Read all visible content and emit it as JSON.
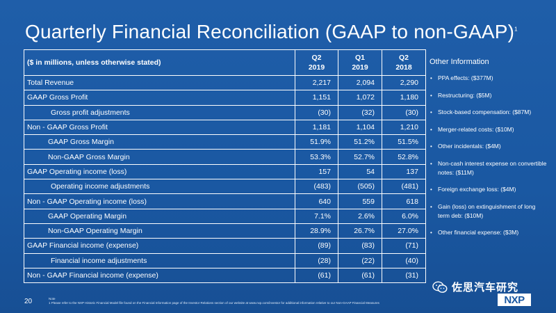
{
  "slide": {
    "title": "Quarterly Financial Reconciliation (GAAP to non-GAAP)",
    "title_footnote_marker": "1",
    "page_number": "20",
    "note_label": "Note",
    "note_text": "1    Please refer to the NXP Historic Financial Model file found on the Financial Information page of the Investor Relations section of our website at www.nxp.com/investor for additional information relative to our Non-GAAP Financial Measures"
  },
  "table": {
    "header_label": "($ in millions, unless otherwise stated)",
    "columns": [
      {
        "q": "Q2",
        "year": "2019"
      },
      {
        "q": "Q1",
        "year": "2019"
      },
      {
        "q": "Q2",
        "year": "2018"
      }
    ],
    "rows": [
      {
        "label": "Total Revenue",
        "values": [
          "2,217",
          "2,094",
          "2,290"
        ]
      },
      {
        "label": "GAAP Gross Profit",
        "values": [
          "1,151",
          "1,072",
          "1,180"
        ]
      },
      {
        "label": "Gross profit adjustments",
        "values": [
          "(30)",
          "(32)",
          "(30)"
        ]
      },
      {
        "label": "Non - GAAP Gross Profit",
        "values": [
          "1,181",
          "1,104",
          "1,210"
        ]
      },
      {
        "label": "GAAP Gross Margin",
        "values": [
          "51.9%",
          "51.2%",
          "51.5%"
        ]
      },
      {
        "label": "Non-GAAP Gross Margin",
        "values": [
          "53.3%",
          "52.7%",
          "52.8%"
        ]
      },
      {
        "label": "GAAP Operating income (loss)",
        "values": [
          "157",
          "54",
          "137"
        ]
      },
      {
        "label": "Operating income adjustments",
        "values": [
          "(483)",
          "(505)",
          "(481)"
        ]
      },
      {
        "label": "Non - GAAP Operating income (loss)",
        "values": [
          "640",
          "559",
          "618"
        ]
      },
      {
        "label": "GAAP Operating Margin",
        "values": [
          "7.1%",
          "2.6%",
          "6.0%"
        ]
      },
      {
        "label": "Non-GAAP Operating Margin",
        "values": [
          "28.9%",
          "26.7%",
          "27.0%"
        ]
      },
      {
        "label": "GAAP Financial income (expense)",
        "values": [
          "(89)",
          "(83)",
          "(71)"
        ]
      },
      {
        "label": "Financial income adjustments",
        "values": [
          "(28)",
          "(22)",
          "(40)"
        ]
      },
      {
        "label": "Non - GAAP Financial income (expense)",
        "values": [
          "(61)",
          "(61)",
          "(31)"
        ]
      }
    ]
  },
  "other_info": {
    "heading": "Other Information",
    "items": [
      "PPA effects: ($377M)",
      "Restructuring: ($5M)",
      "Stock-based compensation: ($87M)",
      "Merger-related costs: ($10M)",
      "Other incidentals: ($4M)",
      "Non-cash interest expense on convertible notes: ($11M)",
      "Foreign exchange loss: ($4M)",
      "Gain (loss) on extinguishment of long term deb: ($10M)",
      "Other financial expense: ($3M)"
    ]
  },
  "watermark": {
    "text": "佐思汽车研究",
    "icon": "wechat-icon"
  },
  "logo": {
    "text": "NXP"
  }
}
